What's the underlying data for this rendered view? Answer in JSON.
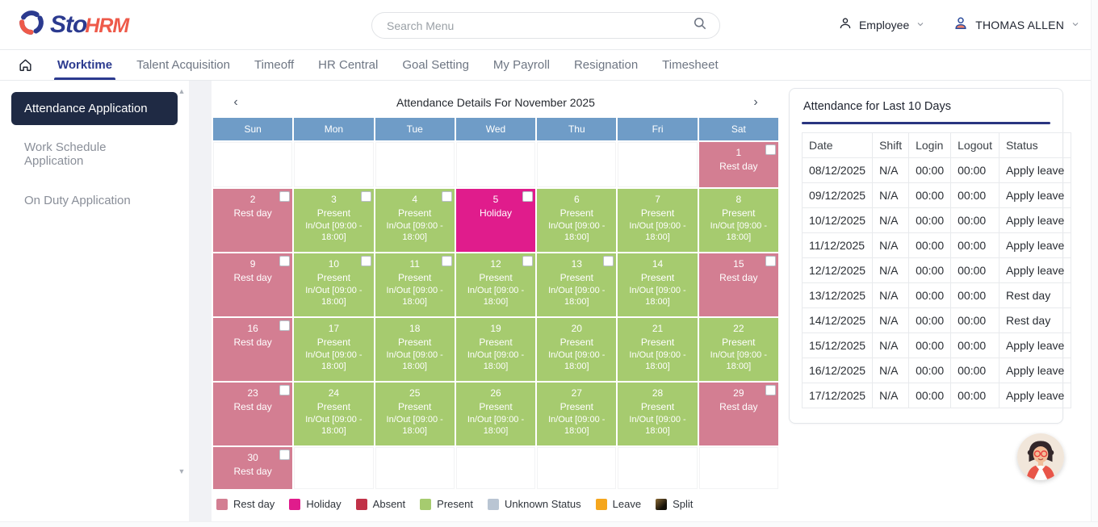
{
  "brand": {
    "name_primary": "Sto",
    "name_secondary": "HRM"
  },
  "header": {
    "search": {
      "placeholder": "Search Menu"
    },
    "role": {
      "label": "Employee"
    },
    "user": {
      "name": "THOMAS ALLEN"
    }
  },
  "nav": {
    "items": [
      {
        "label": "Worktime",
        "active": true
      },
      {
        "label": "Talent Acquisition",
        "active": false
      },
      {
        "label": "Timeoff",
        "active": false
      },
      {
        "label": "HR Central",
        "active": false
      },
      {
        "label": "Goal Setting",
        "active": false
      },
      {
        "label": "My Payroll",
        "active": false
      },
      {
        "label": "Resignation",
        "active": false
      },
      {
        "label": "Timesheet",
        "active": false
      }
    ]
  },
  "sidebar": {
    "items": [
      {
        "label": "Attendance Application",
        "active": true
      },
      {
        "label": "Work Schedule Application",
        "active": false
      },
      {
        "label": "On Duty Application",
        "active": false
      }
    ]
  },
  "calendar": {
    "title": "Attendance Details For November 2025",
    "prev_label": "‹",
    "next_label": "›",
    "day_headers": [
      "Sun",
      "Mon",
      "Tue",
      "Wed",
      "Thu",
      "Fri",
      "Sat"
    ],
    "present_detail": "In/Out [09:00 - 18:00]",
    "colors": {
      "rest": "#D37E92",
      "present": "#A6CB6F",
      "holiday": "#E01C8C",
      "day_header": "#6F9CC7"
    },
    "weeks": [
      [
        null,
        null,
        null,
        null,
        null,
        null,
        {
          "day": "1",
          "status": "Rest day",
          "type": "rest",
          "checkbox": true
        }
      ],
      [
        {
          "day": "2",
          "status": "Rest day",
          "type": "rest",
          "checkbox": true
        },
        {
          "day": "3",
          "status": "Present",
          "type": "present",
          "checkbox": true,
          "detail": true
        },
        {
          "day": "4",
          "status": "Present",
          "type": "present",
          "checkbox": true,
          "detail": true
        },
        {
          "day": "5",
          "status": "Holiday",
          "type": "holiday",
          "checkbox": true
        },
        {
          "day": "6",
          "status": "Present",
          "type": "present",
          "checkbox": false,
          "detail": true
        },
        {
          "day": "7",
          "status": "Present",
          "type": "present",
          "checkbox": false,
          "detail": true
        },
        {
          "day": "8",
          "status": "Present",
          "type": "present",
          "checkbox": false,
          "detail": true
        }
      ],
      [
        {
          "day": "9",
          "status": "Rest day",
          "type": "rest",
          "checkbox": true
        },
        {
          "day": "10",
          "status": "Present",
          "type": "present",
          "checkbox": true,
          "detail": true
        },
        {
          "day": "11",
          "status": "Present",
          "type": "present",
          "checkbox": true,
          "detail": true
        },
        {
          "day": "12",
          "status": "Present",
          "type": "present",
          "checkbox": true,
          "detail": true
        },
        {
          "day": "13",
          "status": "Present",
          "type": "present",
          "checkbox": true,
          "detail": true
        },
        {
          "day": "14",
          "status": "Present",
          "type": "present",
          "checkbox": false,
          "detail": true
        },
        {
          "day": "15",
          "status": "Rest day",
          "type": "rest",
          "checkbox": true
        }
      ],
      [
        {
          "day": "16",
          "status": "Rest day",
          "type": "rest",
          "checkbox": true
        },
        {
          "day": "17",
          "status": "Present",
          "type": "present",
          "checkbox": false,
          "detail": true
        },
        {
          "day": "18",
          "status": "Present",
          "type": "present",
          "checkbox": false,
          "detail": true
        },
        {
          "day": "19",
          "status": "Present",
          "type": "present",
          "checkbox": false,
          "detail": true
        },
        {
          "day": "20",
          "status": "Present",
          "type": "present",
          "checkbox": false,
          "detail": true
        },
        {
          "day": "21",
          "status": "Present",
          "type": "present",
          "checkbox": false,
          "detail": true
        },
        {
          "day": "22",
          "status": "Present",
          "type": "present",
          "checkbox": false,
          "detail": true
        }
      ],
      [
        {
          "day": "23",
          "status": "Rest day",
          "type": "rest",
          "checkbox": true
        },
        {
          "day": "24",
          "status": "Present",
          "type": "present",
          "checkbox": false,
          "detail": true
        },
        {
          "day": "25",
          "status": "Present",
          "type": "present",
          "checkbox": false,
          "detail": true
        },
        {
          "day": "26",
          "status": "Present",
          "type": "present",
          "checkbox": false,
          "detail": true
        },
        {
          "day": "27",
          "status": "Present",
          "type": "present",
          "checkbox": false,
          "detail": true
        },
        {
          "day": "28",
          "status": "Present",
          "type": "present",
          "checkbox": false,
          "detail": true
        },
        {
          "day": "29",
          "status": "Rest day",
          "type": "rest",
          "checkbox": true
        }
      ],
      [
        {
          "day": "30",
          "status": "Rest day",
          "type": "rest",
          "checkbox": true
        },
        null,
        null,
        null,
        null,
        null,
        null
      ]
    ],
    "legend": [
      {
        "label": "Rest day",
        "color": "#D37E92"
      },
      {
        "label": "Holiday",
        "color": "#E01C8C"
      },
      {
        "label": "Absent",
        "color": "#C13248"
      },
      {
        "label": "Present",
        "color": "#A6CB6F"
      },
      {
        "label": "Unknown Status",
        "color": "#B9C5D3"
      },
      {
        "label": "Leave",
        "color": "#F5A61D"
      },
      {
        "label": "Split",
        "color": "#4A3419",
        "gradient": [
          "#8A6A35",
          "#141008"
        ]
      }
    ]
  },
  "attendance_table": {
    "title": "Attendance for Last 10 Days",
    "columns": [
      "Date",
      "Shift",
      "Login",
      "Logout",
      "Status"
    ],
    "rows": [
      [
        "08/12/2025",
        "N/A",
        "00:00",
        "00:00",
        "Apply leave"
      ],
      [
        "09/12/2025",
        "N/A",
        "00:00",
        "00:00",
        "Apply leave"
      ],
      [
        "10/12/2025",
        "N/A",
        "00:00",
        "00:00",
        "Apply leave"
      ],
      [
        "11/12/2025",
        "N/A",
        "00:00",
        "00:00",
        "Apply leave"
      ],
      [
        "12/12/2025",
        "N/A",
        "00:00",
        "00:00",
        "Apply leave"
      ],
      [
        "13/12/2025",
        "N/A",
        "00:00",
        "00:00",
        "Rest day"
      ],
      [
        "14/12/2025",
        "N/A",
        "00:00",
        "00:00",
        "Rest day"
      ],
      [
        "15/12/2025",
        "N/A",
        "00:00",
        "00:00",
        "Apply leave"
      ],
      [
        "16/12/2025",
        "N/A",
        "00:00",
        "00:00",
        "Apply leave"
      ],
      [
        "17/12/2025",
        "N/A",
        "00:00",
        "00:00",
        "Apply leave"
      ]
    ]
  },
  "theme": {
    "accent_navy": "#2B3A8F",
    "sidebar_active": "#1F2A44",
    "brand_red": "#EE5A4A"
  }
}
